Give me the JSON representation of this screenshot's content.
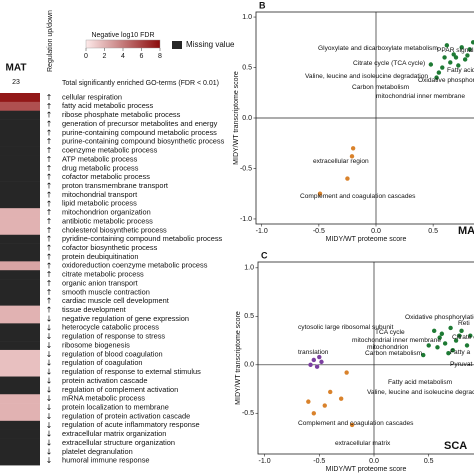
{
  "chart_data": [
    {
      "type": "heatmap",
      "column": "MAT",
      "count": 23,
      "header": "Regulation up/down",
      "total_label": "Total significantly enriched GO-terms (FDR < 0.01)",
      "colorbar_label": "Negative log10 FDR",
      "clim": [
        0,
        8
      ],
      "colorbar_ticks": [
        0,
        2,
        4,
        6,
        8
      ],
      "low_color": "#fdeaea",
      "high_color": "#8b0a0a",
      "missing_color": "#262626",
      "missing_label": "Missing value",
      "categories": [
        "cellular respiration",
        "fatty acid metabolic process",
        "ribose phosphate metabolic process",
        "generation of precursor metabolites and energy",
        "purine-containing compound metabolic process",
        "purine-containing compound biosynthetic process",
        "coenzyme metabolic process",
        "ATP metabolic process",
        "drug metabolic process",
        "cofactor metabolic process",
        "proton transmembrane transport",
        "mitochondrial transport",
        "lipid metabolic process",
        "mitochondrion organization",
        "antibiotic metabolic process",
        "cholesterol biosynthetic process",
        "pyridine-containing compound metabolic process",
        "cofactor biosynthetic process",
        "protein deubiquitination",
        "oxidoreduction coenzyme metabolic process",
        "citrate metabolic process",
        "organic anion transport",
        "smooth muscle contraction",
        "cardiac muscle cell development",
        "tissue development",
        "negative regulation of gene expression",
        "heterocycle catabolic process",
        "regulation of response to stress",
        "ribosome biogenesis",
        "regulation of blood coagulation",
        "regulation of coagulation",
        "regulation of response to external stimulus",
        "protein activation cascade",
        "regulation of complement activation",
        "mRNA metabolic process",
        "protein localization to membrane",
        "regulation of protein activation cascade",
        "regulation of acute inflammatory response",
        "extracellular matrix organization",
        "extracellular structure organization",
        "platelet degranulation",
        "humoral immune response"
      ],
      "directions": [
        "↑",
        "↑",
        "↑",
        "↑",
        "↑",
        "↑",
        "↑",
        "↑",
        "↑",
        "↑",
        "↑",
        "↑",
        "↑",
        "↑",
        "↑",
        "↑",
        "↑",
        "↑",
        "↑",
        "↑",
        "↑",
        "↑",
        "↑",
        "↑",
        "↑",
        "↓",
        "↓",
        "↓",
        "↓",
        "↓",
        "↓",
        "↓",
        "↓",
        "↓",
        "↓",
        "↓",
        "↓",
        "↓",
        "↓",
        "↓",
        "↓",
        "↓"
      ],
      "values": [
        7.5,
        5.5,
        null,
        null,
        null,
        null,
        null,
        null,
        null,
        null,
        null,
        null,
        null,
        2,
        2,
        2,
        null,
        null,
        null,
        2.5,
        null,
        null,
        null,
        null,
        2,
        2,
        null,
        null,
        null,
        1.5,
        1.5,
        1.5,
        null,
        null,
        2,
        2,
        2,
        null,
        null,
        null,
        null,
        null
      ]
    },
    {
      "type": "scatter",
      "panel": "B",
      "corner_label": "MA",
      "xlabel": "MIDY/WT proteome score",
      "ylabel": "MIDY/WT transcriptome score",
      "xlim": [
        -1.05,
        1.05
      ],
      "ylim": [
        -1.05,
        1.05
      ],
      "xticks": [
        {
          "value": -1,
          "label": "-1.0"
        },
        {
          "value": -0.5,
          "label": "-0.5"
        },
        {
          "value": 0,
          "label": "0.0"
        },
        {
          "value": 0.5,
          "label": "0.5"
        }
      ],
      "yticks": [
        {
          "value": -1,
          "label": "-1.0"
        },
        {
          "value": -0.5,
          "label": "-0.5"
        },
        {
          "value": 0,
          "label": "0.0"
        },
        {
          "value": 0.5,
          "label": "0.5"
        },
        {
          "value": 1,
          "label": "1.0"
        }
      ],
      "series": [
        {
          "color": "#1e7a34",
          "x": [
            0.62,
            0.75,
            0.85,
            0.8,
            0.7,
            0.65,
            0.58,
            0.72,
            0.78,
            0.55,
            0.68,
            0.82,
            0.6,
            0.9,
            0.48,
            0.53
          ],
          "values": [
            0.72,
            0.7,
            0.75,
            0.62,
            0.6,
            0.55,
            0.5,
            0.52,
            0.58,
            0.45,
            0.63,
            0.68,
            0.6,
            0.65,
            0.53,
            0.4
          ],
          "labels": [
            "Glyoxylate and dicarboxylate metabolism",
            "PPAR signali",
            "Citrate cycle (TCA cycle)",
            "Fatty acid",
            "Valine, leucine and isoleucine degradation",
            "Oxidative phosphorylation",
            "Carbon metabolism",
            "mitochondrial inner membrane"
          ]
        },
        {
          "color": "#d9822b",
          "x": [
            -0.21,
            -0.25,
            -0.49,
            -0.2
          ],
          "values": [
            -0.38,
            -0.6,
            -0.75,
            -0.3
          ],
          "labels": [
            "extracellular region",
            "Complement and coagulation cascades"
          ]
        }
      ]
    },
    {
      "type": "scatter",
      "panel": "C",
      "corner_label": "SCA",
      "xlabel": "MIDY/WT proteome score",
      "ylabel": "MIDY/WT transcriptome score",
      "xlim": [
        -1.06,
        1.06
      ],
      "ylim": [
        -0.92,
        1.06
      ],
      "xticks": [
        {
          "value": -1,
          "label": "-1.0"
        },
        {
          "value": -0.5,
          "label": "-0.5"
        },
        {
          "value": 0,
          "label": "0.0"
        },
        {
          "value": 0.5,
          "label": "0.5"
        }
      ],
      "yticks": [
        {
          "value": -0.5,
          "label": "-0.5"
        },
        {
          "value": 0,
          "label": "0.0"
        },
        {
          "value": 0.5,
          "label": "0.5"
        },
        {
          "value": 1,
          "label": "1.0"
        }
      ],
      "series": [
        {
          "color": "#1e7a34",
          "x": [
            0.55,
            0.62,
            0.7,
            0.8,
            0.88,
            0.75,
            0.65,
            0.58,
            0.72,
            0.5,
            0.85,
            0.6,
            0.68,
            0.45,
            0.78
          ],
          "values": [
            0.35,
            0.32,
            0.38,
            0.35,
            0.3,
            0.25,
            0.22,
            0.18,
            0.15,
            0.2,
            0.2,
            0.28,
            0.12,
            0.1,
            0.3
          ],
          "labels": [
            "Oxidative phosphorylation",
            "Reti",
            "TCA cycle",
            "Citrate c",
            "mitochondrial inner membrane",
            "mitochondrion",
            "Fatty a",
            "Carbon metabolism",
            "Pyruvat",
            "Fatty acid metabolism",
            "Valine, leucine and isoleucine degradation"
          ]
        },
        {
          "color": "#7b3fa0",
          "x": [
            -0.55,
            -0.5,
            -0.58,
            -0.52,
            -0.48
          ],
          "values": [
            0.05,
            0.08,
            0.0,
            -0.02,
            0.03
          ],
          "labels": [
            "cytosolic large ribosomal subunit",
            "translation"
          ]
        },
        {
          "color": "#d9822b",
          "x": [
            -0.25,
            -0.4,
            -0.45,
            -0.55,
            -0.3,
            -0.2,
            -0.6
          ],
          "values": [
            -0.08,
            -0.28,
            -0.42,
            -0.5,
            -0.35,
            -0.62,
            -0.38
          ],
          "labels": [
            "Complement and coagulation cascades",
            "extracellular matrix"
          ]
        }
      ]
    }
  ]
}
